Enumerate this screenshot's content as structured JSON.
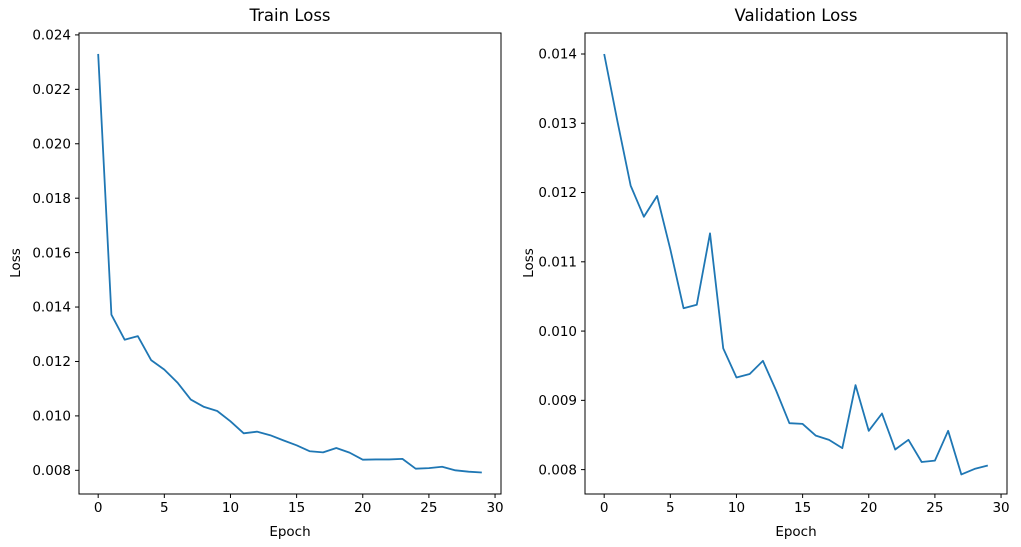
{
  "figure": {
    "background": "#ffffff",
    "text_color": "#000000",
    "axis_color": "#000000"
  },
  "chart_data": [
    {
      "type": "line",
      "title": "Train Loss",
      "xlabel": "Epoch",
      "ylabel": "Loss",
      "line_color": "#1f77b4",
      "grid": false,
      "legend": "none",
      "x": [
        0,
        1,
        2,
        3,
        4,
        5,
        6,
        7,
        8,
        9,
        10,
        11,
        12,
        13,
        14,
        15,
        16,
        17,
        18,
        19,
        20,
        21,
        22,
        23,
        24,
        25,
        26,
        27,
        28,
        29
      ],
      "values": [
        0.0233,
        0.01372,
        0.0128,
        0.01293,
        0.01205,
        0.0117,
        0.01122,
        0.0106,
        0.01033,
        0.01018,
        0.0098,
        0.00936,
        0.00942,
        0.00929,
        0.0091,
        0.00892,
        0.0087,
        0.00866,
        0.00882,
        0.00865,
        0.00839,
        0.0084,
        0.0084,
        0.00842,
        0.00806,
        0.00808,
        0.00813,
        0.008,
        0.00795,
        0.00792
      ],
      "xlim": [
        -1.45,
        30.45
      ],
      "ylim": [
        0.00713,
        0.02407
      ],
      "xtick_values": [
        0,
        5,
        10,
        15,
        20,
        25,
        30
      ],
      "xtick_labels": [
        "0",
        "5",
        "10",
        "15",
        "20",
        "25",
        "30"
      ],
      "ytick_values": [
        0.008,
        0.01,
        0.012,
        0.014,
        0.016,
        0.018,
        0.02,
        0.022,
        0.024
      ],
      "ytick_labels": [
        "0.008",
        "0.010",
        "0.012",
        "0.014",
        "0.016",
        "0.018",
        "0.020",
        "0.022",
        "0.024"
      ]
    },
    {
      "type": "line",
      "title": "Validation Loss",
      "xlabel": "Epoch",
      "ylabel": "Loss",
      "line_color": "#1f77b4",
      "grid": false,
      "legend": "none",
      "x": [
        0,
        1,
        2,
        3,
        4,
        5,
        6,
        7,
        8,
        9,
        10,
        11,
        12,
        13,
        14,
        15,
        16,
        17,
        18,
        19,
        20,
        21,
        22,
        23,
        24,
        25,
        26,
        27,
        28,
        29
      ],
      "values": [
        0.014,
        0.01303,
        0.0121,
        0.01165,
        0.01195,
        0.01118,
        0.01033,
        0.01038,
        0.01141,
        0.00975,
        0.00933,
        0.00938,
        0.00957,
        0.00914,
        0.00867,
        0.00866,
        0.00849,
        0.00843,
        0.00831,
        0.00922,
        0.00856,
        0.00881,
        0.00829,
        0.00843,
        0.00811,
        0.00813,
        0.00856,
        0.00793,
        0.00801,
        0.00806
      ],
      "xlim": [
        -1.45,
        30.45
      ],
      "ylim": [
        0.007648,
        0.014303
      ],
      "xtick_values": [
        0,
        5,
        10,
        15,
        20,
        25,
        30
      ],
      "xtick_labels": [
        "0",
        "5",
        "10",
        "15",
        "20",
        "25",
        "30"
      ],
      "ytick_values": [
        0.008,
        0.009,
        0.01,
        0.011,
        0.012,
        0.013,
        0.014
      ],
      "ytick_labels": [
        "0.008",
        "0.009",
        "0.010",
        "0.011",
        "0.012",
        "0.013",
        "0.014"
      ]
    }
  ]
}
